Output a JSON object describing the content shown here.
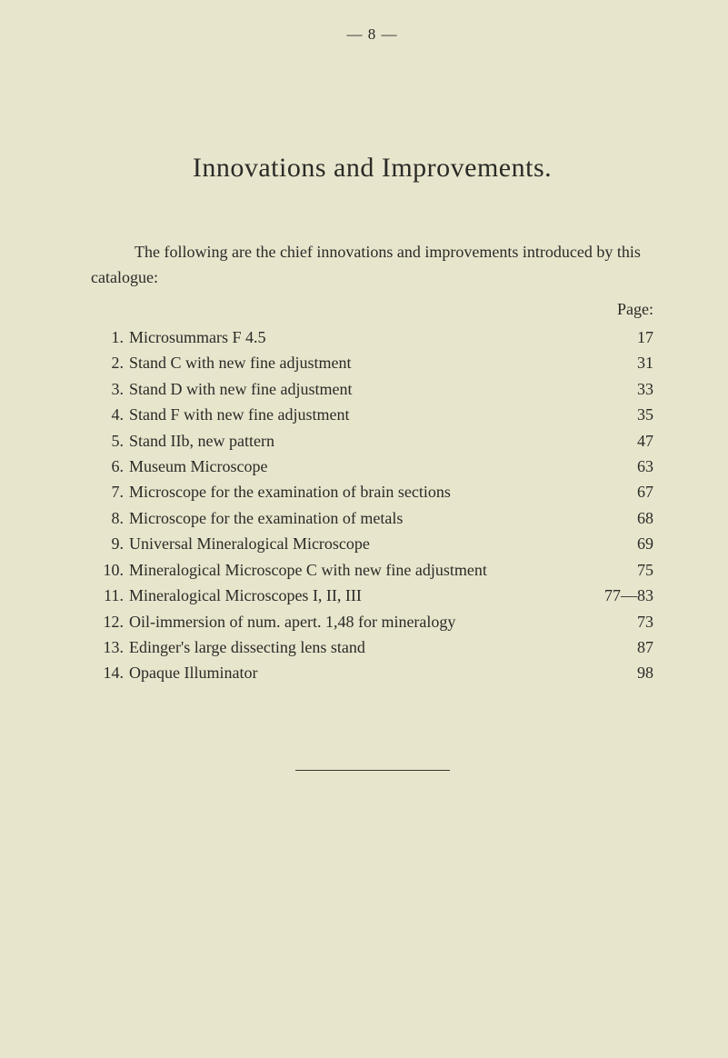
{
  "header": {
    "page_marker": "—   8   —"
  },
  "title": "Innovations and Improvements.",
  "intro": "The following are the chief innovations and improvements introduced by this catalogue:",
  "page_label": "Page:",
  "items": [
    {
      "n": "1.",
      "desc": "Microsummars F 4.5",
      "page": "17"
    },
    {
      "n": "2.",
      "desc": "Stand C with new fine adjustment",
      "page": "31"
    },
    {
      "n": "3.",
      "desc": "Stand D with new fine adjustment",
      "page": "33"
    },
    {
      "n": "4.",
      "desc": "Stand F with new fine adjustment",
      "page": "35"
    },
    {
      "n": "5.",
      "desc": "Stand IIb, new pattern",
      "page": "47"
    },
    {
      "n": "6.",
      "desc": "Museum Microscope",
      "page": "63"
    },
    {
      "n": "7.",
      "desc": "Microscope for the examination of brain sections",
      "page": "67"
    },
    {
      "n": "8.",
      "desc": "Microscope for the examination of metals",
      "page": "68"
    },
    {
      "n": "9.",
      "desc": "Universal Mineralogical Microscope",
      "page": "69"
    },
    {
      "n": "10.",
      "desc": "Mineralogical Microscope C with new fine adjustment",
      "page": "75"
    },
    {
      "n": "11.",
      "desc": "Mineralogical Microscopes I, II, III",
      "page": "77—83"
    },
    {
      "n": "12.",
      "desc": "Oil-immersion of num. apert. 1,48 for mineralogy",
      "page": "73"
    },
    {
      "n": "13.",
      "desc": "Edinger's large dissecting lens stand",
      "page": "87"
    },
    {
      "n": "14.",
      "desc": "Opaque Illuminator",
      "page": "98"
    }
  ]
}
